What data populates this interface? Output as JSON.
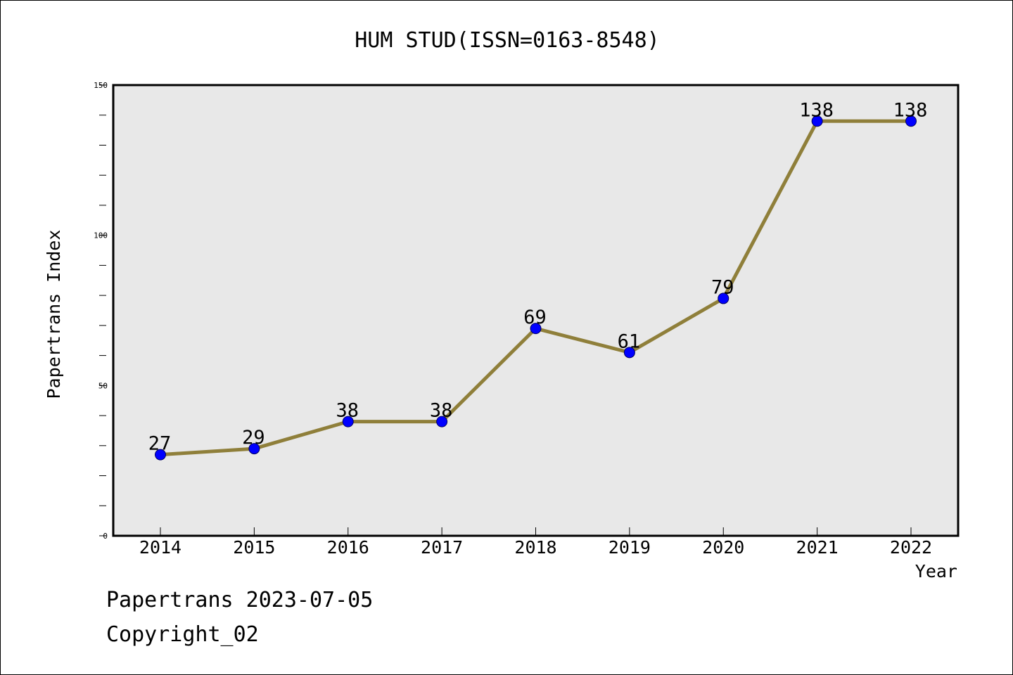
{
  "chart_data": {
    "type": "line",
    "title": "HUM STUD(ISSN=0163-8548)",
    "xlabel": "Year",
    "ylabel": "Papertrans Index",
    "categories": [
      "2014",
      "2015",
      "2016",
      "2017",
      "2018",
      "2019",
      "2020",
      "2021",
      "2022"
    ],
    "series": [
      {
        "values": [
          27,
          29,
          38,
          38,
          69,
          61,
          79,
          138,
          138
        ]
      }
    ],
    "data_labels": [
      "27",
      "29",
      "38",
      "38",
      "69",
      "61",
      "79",
      "138",
      "138"
    ],
    "ylim": [
      0,
      150
    ],
    "y_ticks": [
      0,
      50,
      100,
      150
    ],
    "y_tick_labels": [
      "0",
      "50",
      "100",
      "150"
    ],
    "grid": false,
    "legend": "none",
    "colors": {
      "line": "#8f7f3a",
      "marker": "#0000ff",
      "plot_background": "#e8e8e8"
    }
  },
  "footer": {
    "line1": "Papertrans 2023-07-05",
    "line2": "Copyright_02"
  }
}
